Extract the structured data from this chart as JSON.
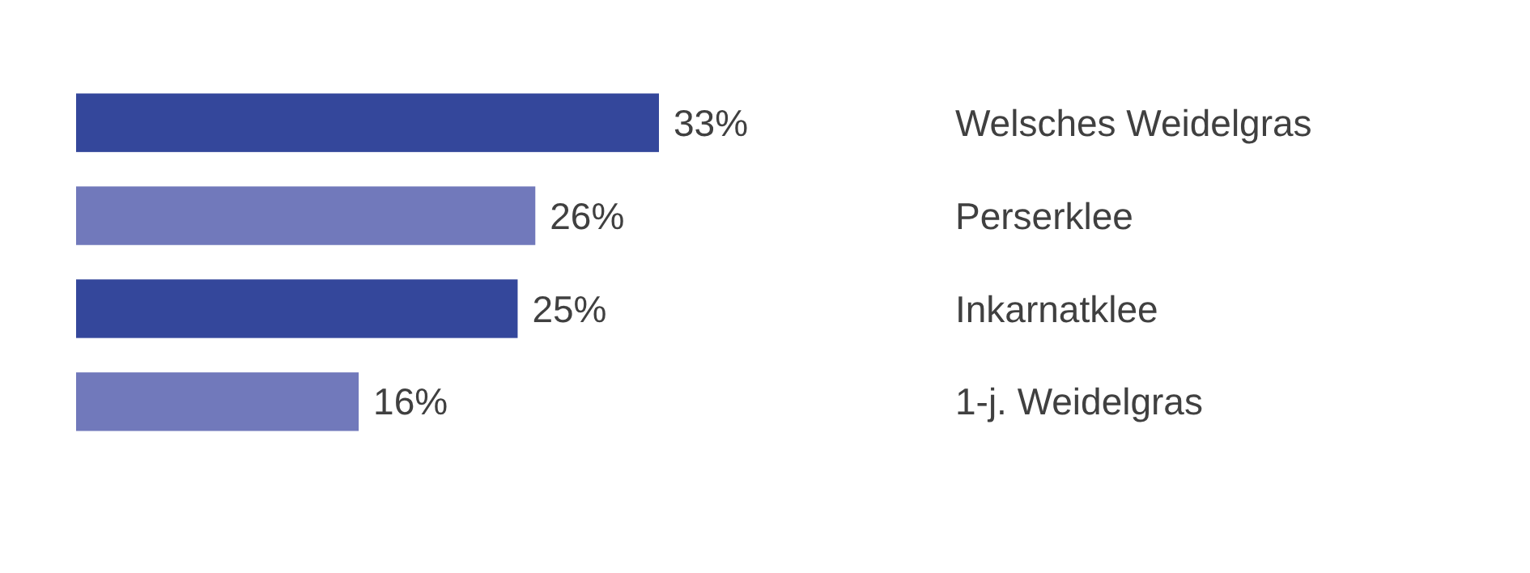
{
  "chart_data": {
    "type": "bar",
    "orientation": "horizontal",
    "categories": [
      "Welsches Weidelgras",
      "Perserklee",
      "Inkarnatklee",
      "1-j. Weidelgras"
    ],
    "values": [
      33,
      26,
      25,
      16
    ],
    "colors": [
      "#34479b",
      "#7179bb",
      "#34479b",
      "#7179bb"
    ],
    "value_labels": [
      "33%",
      "26%",
      "25%",
      "16%"
    ]
  }
}
